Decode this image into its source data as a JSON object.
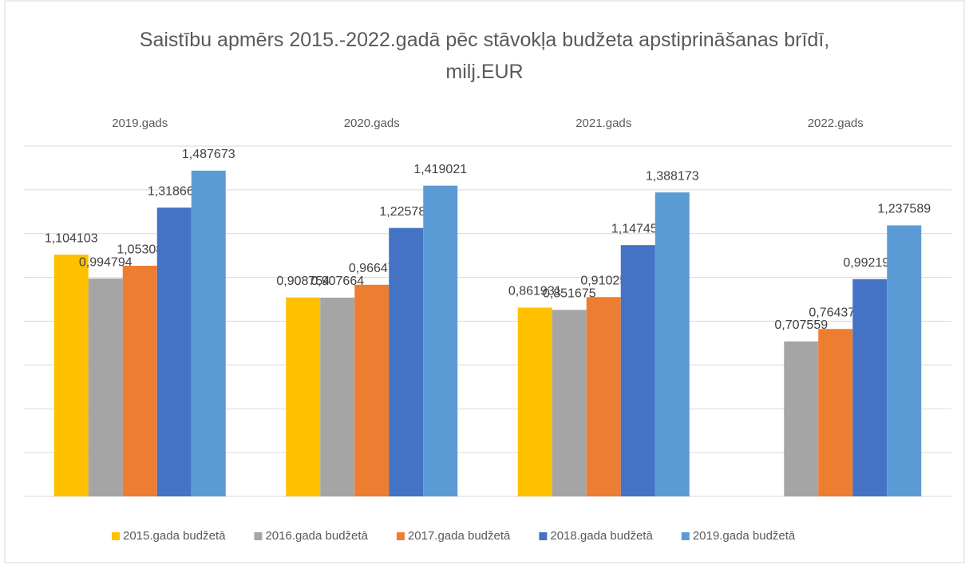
{
  "chart_data": {
    "type": "bar",
    "title": "Saistību apmērs 2015.-2022.gadā pēc stāvokļa budžeta apstiprināšanas brīdī, milj.EUR",
    "categories": [
      "2019.gads",
      "2020.gads",
      "2021.gads",
      "2022.gads"
    ],
    "series": [
      {
        "name": "2015.gada budžetā",
        "color": "#ffc000",
        "values": [
          1.104103,
          0.908754,
          0.861931,
          null
        ],
        "value_labels": [
          "1,104103",
          "0,908754",
          "0,861931",
          null
        ]
      },
      {
        "name": "2016.gada budžetā",
        "color": "#a5a5a5",
        "values": [
          0.994794,
          0.907664,
          0.851675,
          0.707559
        ],
        "value_labels": [
          "0,994794",
          "0,907664",
          "0,851675",
          "0,707559"
        ]
      },
      {
        "name": "2017.gada budžetā",
        "color": "#ed7d31",
        "values": [
          1.05308,
          0.96647,
          0.91025,
          0.764372
        ],
        "value_labels": [
          "1,05308",
          "0,96647",
          "0,91025",
          "0,764372"
        ]
      },
      {
        "name": "2018.gada budžetā",
        "color": "#4472c4",
        "values": [
          1.318663,
          1.225788,
          1.147452,
          0.992196
        ],
        "value_labels": [
          "1,318663",
          "1,225788",
          "1,147452",
          "0,992196"
        ]
      },
      {
        "name": "2019.gada budžetā",
        "color": "#5b9bd5",
        "values": [
          1.487673,
          1.419021,
          1.388173,
          1.237589
        ],
        "value_labels": [
          "1,487673",
          "1,419021",
          "1,388173",
          "1,237589"
        ]
      }
    ],
    "ylim": [
      0,
      1.6
    ],
    "yticks": [
      0,
      0.2,
      0.4,
      0.6,
      0.8,
      1,
      1.2,
      1.4,
      1.6
    ],
    "grid": true,
    "legend": "bottom"
  }
}
